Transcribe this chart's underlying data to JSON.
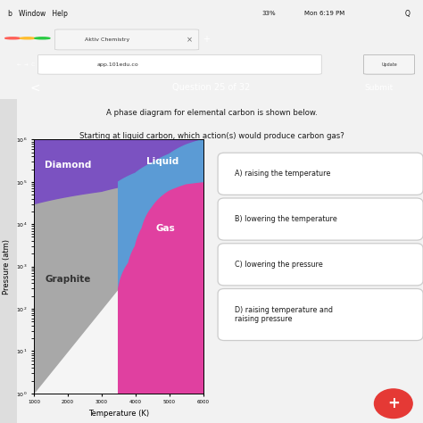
{
  "title_line1": "A phase diagram for elemental carbon is shown below.",
  "title_line2": "Starting at liquid carbon, which action(s) would produce carbon gas?",
  "question_header": "Question 25 of 32",
  "submit_text": "Submit",
  "xlabel": "Temperature (K)",
  "ylabel": "Pressure (atm)",
  "diamond_color": "#7B52C1",
  "liquid_color": "#5B9BD5",
  "graphite_color": "#A8A8A8",
  "gas_color": "#E040A0",
  "top_bar_bg": "#2D2D2D",
  "browser_bg": "#E8600A",
  "page_bg": "#F2F2F2",
  "red_bar_color": "#C0392B",
  "answer_choices": [
    "A) raising the temperature",
    "B) lowering the temperature",
    "C) lowering the pressure",
    "D) raising temperature and\nraising pressure"
  ],
  "gd_T": [
    1000,
    2000,
    3000,
    3500,
    4000
  ],
  "gd_P": [
    30000,
    45000,
    60000,
    75000,
    100000
  ],
  "dl_T": [
    3500,
    4000,
    4500,
    5000,
    5500,
    6000
  ],
  "dl_P": [
    100000,
    160000,
    280000,
    450000,
    750000,
    1000000
  ],
  "lg_T": [
    3500,
    3800,
    4000,
    4200,
    4500,
    5000,
    5500,
    6000
  ],
  "lg_P": [
    300,
    1200,
    3000,
    8000,
    25000,
    60000,
    85000,
    95000
  ],
  "xlim": [
    1000,
    6000
  ],
  "ylim": [
    1,
    1000000
  ]
}
